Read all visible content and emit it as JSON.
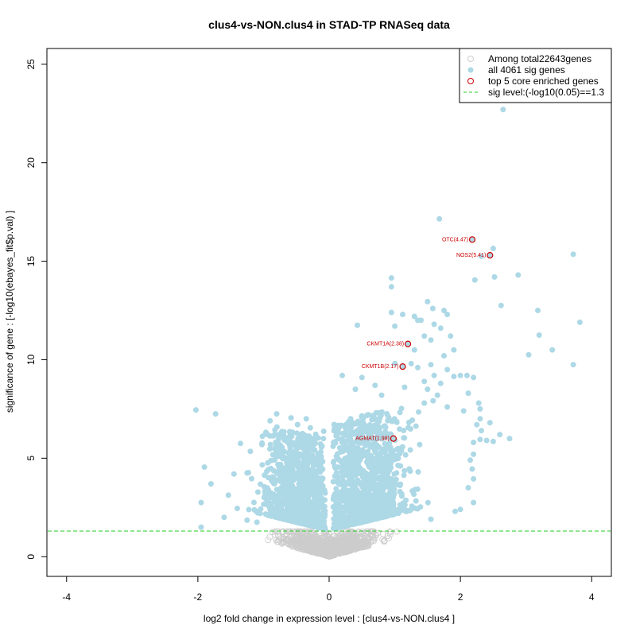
{
  "chart_data": {
    "type": "scatter",
    "title": "clus4-vs-NON.clus4 in STAD-TP RNASeq data",
    "xlabel": "log2 fold change in expression level : [clus4-vs-NON.clus4 ]",
    "ylabel": "significance of gene : [-log10(ebayes_fit$p.val) ]",
    "xlim": [
      -4.3,
      4.3
    ],
    "ylim": [
      -1.0,
      25.8
    ],
    "x_ticks": [
      -4,
      -2,
      0,
      2,
      4
    ],
    "y_ticks": [
      0,
      5,
      10,
      15,
      20,
      25
    ],
    "x_tick_labels": [
      "-4",
      "-2",
      "0",
      "2",
      "4"
    ],
    "y_tick_labels": [
      "0",
      "5",
      "10",
      "15",
      "20",
      "25"
    ],
    "sig_level": 1.3,
    "legend": {
      "position": "top-right",
      "items": [
        {
          "label": "Among total22643genes",
          "kind": "open-circle",
          "color": "#cccccc"
        },
        {
          "label": "all 4061 sig genes",
          "kind": "filled-circle",
          "color": "#add8e6"
        },
        {
          "label": "top 5 core enriched genes",
          "kind": "open-circle",
          "color": "#cc0000"
        },
        {
          "label": "sig level:(-log10(0.05)==1.3",
          "kind": "dashed-line",
          "color": "#22cc22"
        }
      ]
    },
    "colors": {
      "nonsig": "#cccccc",
      "sig": "#add8e6",
      "top": "#cc0000",
      "siglevel": "#22cc22"
    },
    "top_genes": [
      {
        "label": "OTC(4.47)",
        "x": 2.18,
        "y": 16.1
      },
      {
        "label": "NOS2(5.41)",
        "x": 2.45,
        "y": 15.3
      },
      {
        "label": "CKMT1A(2.38)",
        "x": 1.2,
        "y": 10.8
      },
      {
        "label": "CKMT1B(2.17)",
        "x": 1.12,
        "y": 9.65
      },
      {
        "label": "AGMAT(1.98)",
        "x": 0.98,
        "y": 6.0
      }
    ],
    "sig_outliers": [
      {
        "x": 2.65,
        "y": 22.7
      },
      {
        "x": 1.68,
        "y": 17.15
      },
      {
        "x": 2.5,
        "y": 15.65
      },
      {
        "x": 2.32,
        "y": 15.25
      },
      {
        "x": 3.72,
        "y": 15.35
      },
      {
        "x": 2.88,
        "y": 14.3
      },
      {
        "x": 2.22,
        "y": 14.05
      },
      {
        "x": 2.52,
        "y": 14.2
      },
      {
        "x": 0.95,
        "y": 14.15
      },
      {
        "x": 0.95,
        "y": 13.7
      },
      {
        "x": 1.5,
        "y": 12.95
      },
      {
        "x": 2.62,
        "y": 12.75
      },
      {
        "x": 3.18,
        "y": 12.5
      },
      {
        "x": 1.75,
        "y": 12.5
      },
      {
        "x": 1.58,
        "y": 12.6
      },
      {
        "x": 0.95,
        "y": 12.4
      },
      {
        "x": 1.3,
        "y": 12.2
      },
      {
        "x": 1.8,
        "y": 12.3
      },
      {
        "x": 1.4,
        "y": 12.0
      },
      {
        "x": 3.82,
        "y": 11.9
      },
      {
        "x": 1.35,
        "y": 12.0
      },
      {
        "x": 1.12,
        "y": 12.3
      },
      {
        "x": 1.7,
        "y": 11.6
      },
      {
        "x": 1.6,
        "y": 11.8
      },
      {
        "x": 0.43,
        "y": 11.75
      },
      {
        "x": 1.0,
        "y": 11.7
      },
      {
        "x": 3.2,
        "y": 11.25
      },
      {
        "x": 1.85,
        "y": 11.2
      },
      {
        "x": 1.55,
        "y": 11.0
      },
      {
        "x": 1.45,
        "y": 11.2
      },
      {
        "x": 1.9,
        "y": 10.5
      },
      {
        "x": 3.4,
        "y": 10.5
      },
      {
        "x": 3.04,
        "y": 10.25
      },
      {
        "x": 1.3,
        "y": 10.5
      },
      {
        "x": 1.75,
        "y": 10.2
      },
      {
        "x": 3.72,
        "y": 9.75
      },
      {
        "x": 1.25,
        "y": 9.8
      },
      {
        "x": 1.55,
        "y": 9.75
      },
      {
        "x": 1.0,
        "y": 9.8
      },
      {
        "x": 1.8,
        "y": 9.5
      },
      {
        "x": 1.35,
        "y": 9.6
      },
      {
        "x": 2.1,
        "y": 9.2
      },
      {
        "x": 2.0,
        "y": 9.2
      },
      {
        "x": 1.6,
        "y": 9.2
      },
      {
        "x": 0.2,
        "y": 9.2
      },
      {
        "x": 1.9,
        "y": 9.15
      },
      {
        "x": 0.5,
        "y": 9.1
      },
      {
        "x": 2.2,
        "y": 9.1
      },
      {
        "x": 1.45,
        "y": 8.9
      },
      {
        "x": 1.7,
        "y": 8.8
      },
      {
        "x": 1.15,
        "y": 8.6
      },
      {
        "x": 0.7,
        "y": 8.7
      },
      {
        "x": 1.5,
        "y": 8.5
      },
      {
        "x": 0.4,
        "y": 8.5
      },
      {
        "x": 0.8,
        "y": 8.2
      },
      {
        "x": 2.12,
        "y": 8.3
      },
      {
        "x": 1.65,
        "y": 8.2
      },
      {
        "x": 2.28,
        "y": 7.8
      },
      {
        "x": 1.45,
        "y": 7.8
      },
      {
        "x": 2.3,
        "y": 7.5
      },
      {
        "x": 1.8,
        "y": 7.6
      },
      {
        "x": 2.05,
        "y": 7.4
      },
      {
        "x": 2.3,
        "y": 7.0
      },
      {
        "x": 2.25,
        "y": 6.7
      },
      {
        "x": 2.45,
        "y": 6.8
      },
      {
        "x": 2.32,
        "y": 6.4
      },
      {
        "x": 2.6,
        "y": 6.2
      },
      {
        "x": 2.75,
        "y": 6.0
      },
      {
        "x": 2.3,
        "y": 5.95
      },
      {
        "x": 2.4,
        "y": 5.9
      },
      {
        "x": 2.5,
        "y": 5.85
      },
      {
        "x": 2.2,
        "y": 5.8
      },
      {
        "x": 2.2,
        "y": 5.2
      },
      {
        "x": 2.15,
        "y": 4.9
      },
      {
        "x": 2.18,
        "y": 4.45
      },
      {
        "x": 2.2,
        "y": 3.95
      },
      {
        "x": 2.12,
        "y": 3.5
      },
      {
        "x": 2.2,
        "y": 2.75
      },
      {
        "x": 2.0,
        "y": 2.4
      },
      {
        "x": 1.92,
        "y": 2.3
      },
      {
        "x": 1.55,
        "y": 1.9
      },
      {
        "x": -2.03,
        "y": 7.45
      },
      {
        "x": -1.73,
        "y": 7.25
      },
      {
        "x": -0.8,
        "y": 7.25
      },
      {
        "x": -0.58,
        "y": 7.05
      },
      {
        "x": -0.9,
        "y": 6.9
      },
      {
        "x": -1.35,
        "y": 5.75
      },
      {
        "x": -1.2,
        "y": 5.35
      },
      {
        "x": -1.9,
        "y": 4.55
      },
      {
        "x": -1.45,
        "y": 4.2
      },
      {
        "x": -1.25,
        "y": 4.25
      },
      {
        "x": -1.8,
        "y": 3.7
      },
      {
        "x": -1.95,
        "y": 2.75
      },
      {
        "x": -1.4,
        "y": 2.45
      },
      {
        "x": -1.6,
        "y": 2.0
      },
      {
        "x": -1.95,
        "y": 1.5
      },
      {
        "x": -1.25,
        "y": 1.85
      },
      {
        "x": -1.1,
        "y": 1.75
      }
    ]
  }
}
